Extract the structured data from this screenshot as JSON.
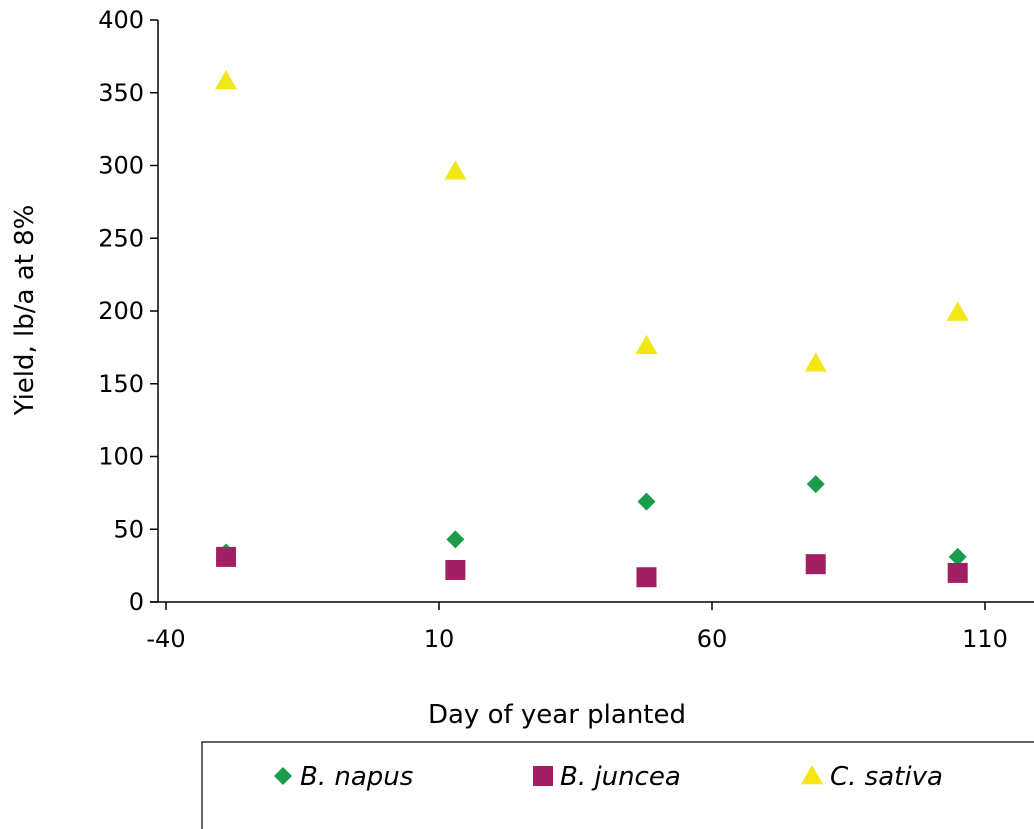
{
  "chart_data": {
    "type": "scatter",
    "xlabel": "Day of year planted",
    "ylabel": "Yield, lb/a at 8%",
    "xlim": [
      -40,
      120
    ],
    "ylim": [
      0,
      400
    ],
    "x_ticks": [
      -40,
      10,
      60,
      110
    ],
    "y_ticks": [
      0,
      50,
      100,
      150,
      200,
      250,
      300,
      350,
      400
    ],
    "grid": false,
    "legend_position": "bottom",
    "series": [
      {
        "name": "B. napus",
        "marker": "diamond",
        "color": "#1a9c4a",
        "x": [
          -29,
          13,
          48,
          79,
          105
        ],
        "y": [
          34,
          43,
          69,
          81,
          31
        ]
      },
      {
        "name": "B. juncea",
        "marker": "square",
        "color": "#a21f63",
        "x": [
          -29,
          13,
          48,
          79,
          105
        ],
        "y": [
          31,
          22,
          17,
          26,
          20
        ]
      },
      {
        "name": "C. sativa",
        "marker": "triangle",
        "color": "#f2e615",
        "x": [
          -29,
          13,
          48,
          79,
          105
        ],
        "y": [
          358,
          296,
          176,
          164,
          199
        ]
      }
    ]
  }
}
